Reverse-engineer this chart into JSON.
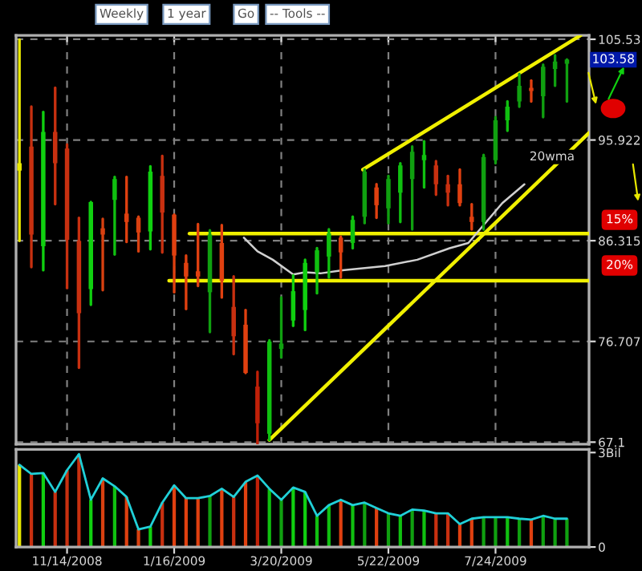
{
  "chart_data": [
    {
      "type": "candlestick",
      "x": [
        "2008-10-17",
        "2008-10-24",
        "2008-10-31",
        "2008-11-07",
        "2008-11-14",
        "2008-11-21",
        "2008-11-28",
        "2008-12-05",
        "2008-12-12",
        "2008-12-19",
        "2008-12-26",
        "2009-01-02",
        "2009-01-09",
        "2009-01-16",
        "2009-01-23",
        "2009-01-30",
        "2009-02-06",
        "2009-02-13",
        "2009-02-20",
        "2009-02-27",
        "2009-03-06",
        "2009-03-13",
        "2009-03-20",
        "2009-03-27",
        "2009-04-03",
        "2009-04-10",
        "2009-04-17",
        "2009-04-24",
        "2009-05-01",
        "2009-05-08",
        "2009-05-15",
        "2009-05-22",
        "2009-05-29",
        "2009-06-05",
        "2009-06-12",
        "2009-06-19",
        "2009-06-26",
        "2009-07-03",
        "2009-07-10",
        "2009-07-17",
        "2009-07-24",
        "2009-07-31",
        "2009-08-07",
        "2009-08-14",
        "2009-08-21",
        "2009-08-28",
        "2009-09-04"
      ],
      "ohlc": [
        [
          93.7,
          105.5,
          86.3,
          93.0
        ],
        [
          95.3,
          99.1,
          83.8,
          86.9
        ],
        [
          85.8,
          98.6,
          83.5,
          96.7
        ],
        [
          96.7,
          100.9,
          89.8,
          93.7
        ],
        [
          95.1,
          95.5,
          81.8,
          86.4
        ],
        [
          86.3,
          88.5,
          74.2,
          79.4
        ],
        [
          81.7,
          90.0,
          80.2,
          90.0
        ],
        [
          87.5,
          88.4,
          81.6,
          86.9
        ],
        [
          90.2,
          92.4,
          85.0,
          92.2
        ],
        [
          88.9,
          92.4,
          86.2,
          88.1
        ],
        [
          88.5,
          88.6,
          85.3,
          87.1
        ],
        [
          87.2,
          93.4,
          85.5,
          92.9
        ],
        [
          92.5,
          94.4,
          85.2,
          89.0
        ],
        [
          88.8,
          88.8,
          81.4,
          84.9
        ],
        [
          84.2,
          84.9,
          79.8,
          82.9
        ],
        [
          83.4,
          87.9,
          82.0,
          82.9
        ],
        [
          81.4,
          87.3,
          77.6,
          86.9
        ],
        [
          86.1,
          87.8,
          80.9,
          82.5
        ],
        [
          80.0,
          82.9,
          75.5,
          77.2
        ],
        [
          78.3,
          79.7,
          73.7,
          73.7
        ],
        [
          72.4,
          73.8,
          66.9,
          68.9
        ],
        [
          67.9,
          76.8,
          67.3,
          76.7
        ],
        [
          76.0,
          80.9,
          75.2,
          76.5
        ],
        [
          78.7,
          83.0,
          78.2,
          81.5
        ],
        [
          79.7,
          84.5,
          77.8,
          84.2
        ],
        [
          83.3,
          85.6,
          81.3,
          85.4
        ],
        [
          84.8,
          87.4,
          82.8,
          87.0
        ],
        [
          86.6,
          86.7,
          82.8,
          85.2
        ],
        [
          86.1,
          88.6,
          85.6,
          88.3
        ],
        [
          88.6,
          93.1,
          88.0,
          92.9
        ],
        [
          91.4,
          91.7,
          88.5,
          89.7
        ],
        [
          89.4,
          92.5,
          88.0,
          92.2
        ],
        [
          90.9,
          93.7,
          88.1,
          93.5
        ],
        [
          92.2,
          95.3,
          87.4,
          94.8
        ],
        [
          94.0,
          95.8,
          91.4,
          94.5
        ],
        [
          93.5,
          93.9,
          90.7,
          91.7
        ],
        [
          91.7,
          92.5,
          89.7,
          90.9
        ],
        [
          91.7,
          93.1,
          89.7,
          89.9
        ],
        [
          88.6,
          89.8,
          87.4,
          88.1
        ],
        [
          88.1,
          94.5,
          87.4,
          94.3
        ],
        [
          94.0,
          98.1,
          93.7,
          97.8
        ],
        [
          97.8,
          99.6,
          96.8,
          99.1
        ],
        [
          99.6,
          102.2,
          99.1,
          101.1
        ],
        [
          100.9,
          101.6,
          99.6,
          100.6
        ],
        [
          100.1,
          103.1,
          98.1,
          102.9
        ],
        [
          102.7,
          104.0,
          101.1,
          103.4
        ],
        [
          103.2,
          103.6,
          99.6,
          103.6
        ]
      ],
      "colors": [
        "#e8e800",
        "#c83010",
        "#10d010",
        "#c83010",
        "#c83010",
        "#c83010",
        "#10d010",
        "#d84010",
        "#10c010",
        "#e04010",
        "#d84010",
        "#10d010",
        "#c83010",
        "#e04010",
        "#e04010",
        "#e04010",
        "#10a010",
        "#e04010",
        "#c83010",
        "#e04010",
        "#c02008",
        "#10c010",
        "#10a010",
        "#10d010",
        "#10d010",
        "#10c010",
        "#10c010",
        "#e04010",
        "#10c010",
        "#10a010",
        "#e04010",
        "#10a010",
        "#10c010",
        "#10a010",
        "#10c010",
        "#c83010",
        "#c83010",
        "#e04010",
        "#e04010",
        "#10a010",
        "#10a010",
        "#10c010",
        "#10a010",
        "#e04010",
        "#10a010",
        "#10a010",
        "#10a010"
      ],
      "series": [
        {
          "type": "line",
          "color": "#f0f000",
          "x": [
            "2009-05-07",
            "2009-09-12"
          ],
          "values": [
            93.1,
            105.9
          ]
        },
        {
          "type": "line",
          "color": "#f0f000",
          "x": [
            "2009-03-13",
            "2009-09-17"
          ],
          "values": [
            67.3,
            96.6
          ]
        },
        {
          "type": "line",
          "color": "#f0f000",
          "x": [
            "2009-01-25",
            "2009-09-17"
          ],
          "values": [
            87.0,
            87.0
          ]
        },
        {
          "type": "line",
          "color": "#f0f000",
          "x": [
            "2009-01-13",
            "2009-09-17"
          ],
          "values": [
            82.5,
            82.5
          ]
        },
        {
          "type": "line",
          "name": "20wma",
          "color": "#d0d0d0",
          "x": [
            "2009-02-26",
            "2009-03-06",
            "2009-03-15",
            "2009-03-27",
            "2009-04-03",
            "2009-04-12",
            "2009-04-25",
            "2009-05-20",
            "2009-06-08",
            "2009-06-27",
            "2009-07-08",
            "2009-07-28",
            "2009-08-10"
          ],
          "values": [
            86.6,
            85.3,
            84.5,
            83.1,
            83.3,
            83.2,
            83.5,
            83.9,
            84.5,
            85.6,
            86.1,
            89.9,
            91.7
          ]
        }
      ],
      "xlim": [
        "2008-10-15",
        "2009-09-17"
      ],
      "xticks": [
        "2008-11-14",
        "2009-01-16",
        "2009-03-20",
        "2009-05-22",
        "2009-07-24"
      ],
      "ylim": [
        66.9,
        105.9
      ],
      "yticks": [
        67.1,
        76.707,
        86.315,
        95.922,
        105.53
      ],
      "tick_labels": "y",
      "grid": true,
      "annotations": [
        "Weekly",
        "1 year",
        "Go",
        "-- Tools --",
        "15%",
        "20%",
        {
          "text": "103.58",
          "y": 103.58
        }
      ]
    },
    {
      "type": "bar",
      "x": [
        "2008-10-17",
        "2008-10-24",
        "2008-10-31",
        "2008-11-07",
        "2008-11-14",
        "2008-11-21",
        "2008-11-28",
        "2008-12-05",
        "2008-12-12",
        "2008-12-19",
        "2008-12-26",
        "2009-01-02",
        "2009-01-09",
        "2009-01-16",
        "2009-01-23",
        "2009-01-30",
        "2009-02-06",
        "2009-02-13",
        "2009-02-20",
        "2009-02-27",
        "2009-03-06",
        "2009-03-13",
        "2009-03-20",
        "2009-03-27",
        "2009-04-03",
        "2009-04-10",
        "2009-04-17",
        "2009-04-24",
        "2009-05-01",
        "2009-05-08",
        "2009-05-15",
        "2009-05-22",
        "2009-05-29",
        "2009-06-05",
        "2009-06-12",
        "2009-06-19",
        "2009-06-26",
        "2009-07-03",
        "2009-07-10",
        "2009-07-17",
        "2009-07-24",
        "2009-07-31",
        "2009-08-07",
        "2009-08-14",
        "2009-08-21",
        "2009-08-28",
        "2009-09-04"
      ],
      "series": [
        {
          "type": "bar",
          "values": [
            2.61,
            2.32,
            2.35,
            1.75,
            2.44,
            2.95,
            1.5,
            2.18,
            1.93,
            1.59,
            0.56,
            0.65,
            1.41,
            1.96,
            1.55,
            1.55,
            1.62,
            1.85,
            1.59,
            2.07,
            2.27,
            1.85,
            1.5,
            1.89,
            1.75,
            0.99,
            1.33,
            1.5,
            1.33,
            1.41,
            1.24,
            1.07,
            0.99,
            1.19,
            1.16,
            1.07,
            1.07,
            0.73,
            0.9,
            0.95,
            0.95,
            0.95,
            0.9,
            0.87,
            0.99,
            0.9,
            0.9
          ],
          "colors": [
            "#e8e800",
            "#c83010",
            "#10d010",
            "#c83010",
            "#c83010",
            "#c83010",
            "#10d010",
            "#d84010",
            "#10c010",
            "#e04010",
            "#d84010",
            "#10d010",
            "#c83010",
            "#e04010",
            "#e04010",
            "#e04010",
            "#10a010",
            "#e04010",
            "#c83010",
            "#e04010",
            "#c02008",
            "#10c010",
            "#10a010",
            "#10d010",
            "#10d010",
            "#10c010",
            "#10c010",
            "#e04010",
            "#10c010",
            "#10a010",
            "#e04010",
            "#10a010",
            "#10c010",
            "#10a010",
            "#10c010",
            "#c83010",
            "#c83010",
            "#e04010",
            "#e04010",
            "#10a010",
            "#10a010",
            "#10c010",
            "#10a010",
            "#e04010",
            "#10a010",
            "#10a010",
            "#10a010"
          ]
        },
        {
          "type": "line",
          "color": "#20d0d8",
          "values": [
            2.61,
            2.32,
            2.35,
            1.75,
            2.44,
            2.95,
            1.5,
            2.18,
            1.93,
            1.59,
            0.56,
            0.65,
            1.41,
            1.96,
            1.55,
            1.55,
            1.62,
            1.85,
            1.59,
            2.07,
            2.27,
            1.85,
            1.5,
            1.89,
            1.75,
            0.99,
            1.33,
            1.5,
            1.33,
            1.41,
            1.24,
            1.07,
            0.99,
            1.19,
            1.16,
            1.07,
            1.07,
            0.73,
            0.9,
            0.95,
            0.95,
            0.95,
            0.9,
            0.87,
            0.99,
            0.9,
            0.9
          ]
        }
      ],
      "xlim": [
        "2008-10-15",
        "2009-09-17"
      ],
      "xticks": [
        {
          "value": "2008-11-14",
          "label": "11/14/2008"
        },
        {
          "value": "2009-01-16",
          "label": "1/16/2009"
        },
        {
          "value": "2009-03-20",
          "label": "3/20/2009"
        },
        {
          "value": "2009-05-22",
          "label": "5/22/2009"
        },
        {
          "value": "2009-07-24",
          "label": "7/24/2009"
        }
      ],
      "ylim": [
        0,
        3.1
      ],
      "yticks": [
        0,
        {
          "value": 3,
          "label": "3Bil"
        }
      ],
      "grid": false
    }
  ]
}
